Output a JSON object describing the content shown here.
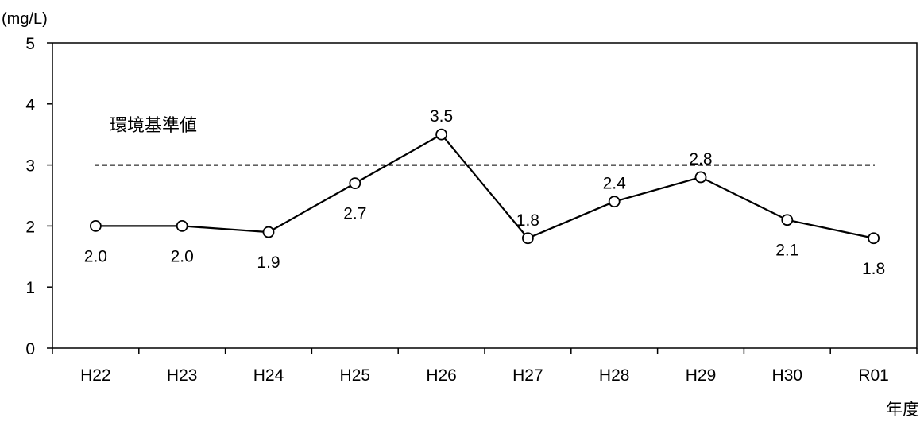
{
  "chart_data": {
    "type": "line",
    "categories": [
      "H22",
      "H23",
      "H24",
      "H25",
      "H26",
      "H27",
      "H28",
      "H29",
      "H30",
      "R01"
    ],
    "series": [
      {
        "values": [
          2.0,
          2.0,
          1.9,
          2.7,
          3.5,
          1.8,
          2.4,
          2.8,
          2.1,
          1.8
        ]
      }
    ],
    "data_labels": [
      "2.0",
      "2.0",
      "1.9",
      "2.7",
      "3.5",
      "1.8",
      "2.4",
      "2.8",
      "2.1",
      "1.8"
    ],
    "label_positions": [
      "below",
      "below",
      "below",
      "below",
      "above",
      "above",
      "above",
      "above",
      "below",
      "below"
    ],
    "reference_line": {
      "label": "環境基準値",
      "value": 3,
      "style": "dashed"
    },
    "y_ticks": [
      "0",
      "1",
      "2",
      "3",
      "4",
      "5"
    ],
    "ylim": [
      0,
      5
    ],
    "ylabel": "(mg/L)",
    "xlabel": "年度",
    "grid": false,
    "colors": {
      "line": "#000000",
      "marker_fill": "#ffffff",
      "axis": "#000000"
    }
  }
}
